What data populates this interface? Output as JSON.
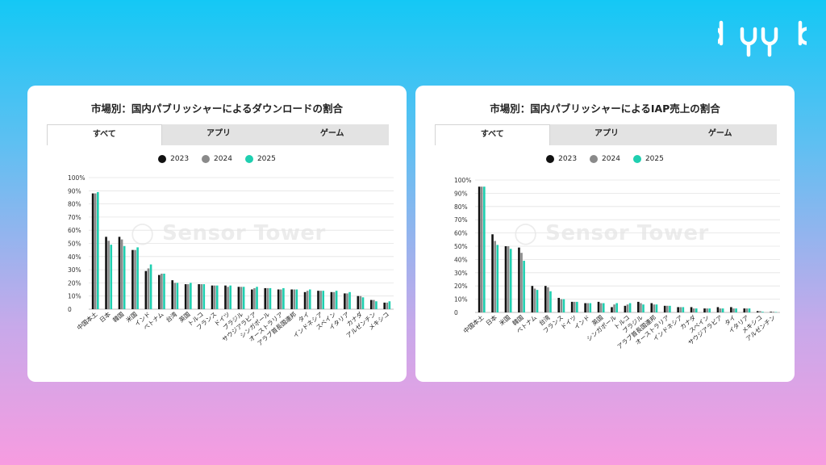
{
  "brand": {
    "logo_text": "byyd"
  },
  "tabs": [
    "すべて",
    "アプリ",
    "ゲーム"
  ],
  "watermark": "Sensor Tower",
  "legend_colors": [
    "#111111",
    "#8a8a8a",
    "#1fcfb0"
  ],
  "chart_data": [
    {
      "type": "bar",
      "title": "市場別：国内パブリッシャーによるダウンロードの割合",
      "yticks": [
        "100%",
        "90%",
        "80%",
        "70%",
        "60%",
        "50%",
        "40%",
        "30%",
        "20%",
        "10%",
        "0"
      ],
      "ylim": [
        0,
        100
      ],
      "grid": true,
      "legend_position": "top",
      "categories": [
        "中国本土",
        "日本",
        "韓国",
        "米国",
        "インド",
        "ベトナム",
        "台湾",
        "英国",
        "トルコ",
        "フランス",
        "ドイツ",
        "ブラジル",
        "サウジアラビア",
        "シンガポール",
        "オーストラリア",
        "アラブ首長国連邦",
        "タイ",
        "インドネシア",
        "スペイン",
        "イタリア",
        "カナダ",
        "アルゼンチン",
        "メキシコ"
      ],
      "series": [
        {
          "name": "2023",
          "values": [
            88,
            55,
            55,
            45,
            29,
            26,
            22,
            19,
            19,
            18,
            18,
            17,
            15,
            16,
            15,
            15,
            13,
            14,
            13,
            12,
            10,
            7,
            5
          ]
        },
        {
          "name": "2024",
          "values": [
            88,
            52,
            53,
            45,
            31,
            27,
            20,
            19,
            19,
            18,
            17,
            17,
            16,
            16,
            15,
            15,
            14,
            14,
            13,
            12,
            10,
            7,
            5
          ]
        },
        {
          "name": "2025",
          "values": [
            89,
            49,
            48,
            47,
            34,
            27,
            20,
            20,
            19,
            18,
            18,
            17,
            17,
            16,
            16,
            15,
            15,
            14,
            14,
            13,
            9,
            6,
            6
          ]
        }
      ]
    },
    {
      "type": "bar",
      "title": "市場別：国内パブリッシャーによるIAP売上の割合",
      "yticks": [
        "100%",
        "90%",
        "80%",
        "70%",
        "60%",
        "50%",
        "40%",
        "30%",
        "20%",
        "10%",
        "0"
      ],
      "ylim": [
        0,
        100
      ],
      "grid": true,
      "legend_position": "top",
      "categories": [
        "中国本土",
        "日本",
        "米国",
        "韓国",
        "ベトナム",
        "台湾",
        "フランス",
        "ドイツ",
        "インド",
        "英国",
        "シンガポール",
        "トルコ",
        "ブラジル",
        "アラブ首長国連邦",
        "オーストラリア",
        "インドネシア",
        "カナダ",
        "スペイン",
        "サウジアラビア",
        "タイ",
        "イタリア",
        "メキシコ",
        "アルゼンチン"
      ],
      "series": [
        {
          "name": "2023",
          "values": [
            95,
            59,
            50,
            49,
            20,
            20,
            11,
            8,
            7,
            8,
            4,
            5,
            8,
            7,
            5,
            4,
            4,
            3,
            4,
            4,
            3,
            1,
            0.5
          ]
        },
        {
          "name": "2024",
          "values": [
            95,
            54,
            50,
            45,
            18,
            19,
            10,
            8,
            7,
            7,
            6,
            6,
            7,
            6,
            5,
            4,
            3,
            3,
            3,
            3,
            3,
            1,
            0.5
          ]
        },
        {
          "name": "2025",
          "values": [
            95,
            51,
            48,
            39,
            17,
            16,
            10,
            8,
            7,
            7,
            7,
            7,
            6,
            6,
            5,
            4,
            3,
            3,
            3,
            3,
            3,
            0.5,
            0.3
          ]
        }
      ]
    }
  ]
}
